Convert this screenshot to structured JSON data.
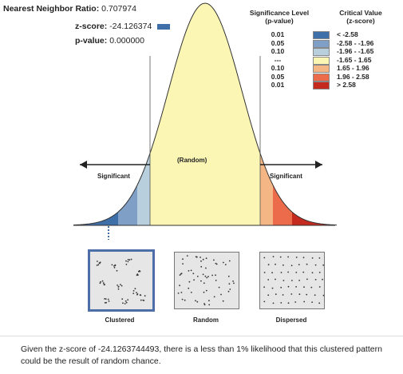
{
  "stats": {
    "nn_label": "Nearest Neighbor Ratio:",
    "nn_value": "0.707974",
    "z_label": "z-score:",
    "z_value": "-24.126374",
    "p_label": "p-value:",
    "p_value": "0.000000"
  },
  "legend": {
    "sig_header": [
      "Significance Level",
      "(p-value)"
    ],
    "crit_header": [
      "Critical Value",
      "(z-score)"
    ],
    "rows": [
      {
        "sig": "0.01",
        "crit": "< -2.58",
        "color": "#3f6fa8"
      },
      {
        "sig": "0.05",
        "crit": "-2.58 - -1.96",
        "color": "#7f9fc6"
      },
      {
        "sig": "0.10",
        "crit": "-1.96 - -1.65",
        "color": "#b8cfdd"
      },
      {
        "sig": "---",
        "crit": "-1.65 - 1.65",
        "color": "#fbf6b4"
      },
      {
        "sig": "0.10",
        "crit": "1.65 - 1.96",
        "color": "#f4b684"
      },
      {
        "sig": "0.05",
        "crit": "1.96 - 2.58",
        "color": "#ec6b4a"
      },
      {
        "sig": "0.01",
        "crit": "> 2.58",
        "color": "#c42a1e"
      }
    ]
  },
  "curve": {
    "random_label": "(Random)",
    "left_label": "Significant",
    "right_label": "Significant"
  },
  "patterns": {
    "clustered": "Clustered",
    "random": "Random",
    "dispersed": "Dispersed"
  },
  "description": "Given the z-score of -24.1263744493, there is a less than 1% likelihood that this clustered pattern could be the result of random chance."
}
